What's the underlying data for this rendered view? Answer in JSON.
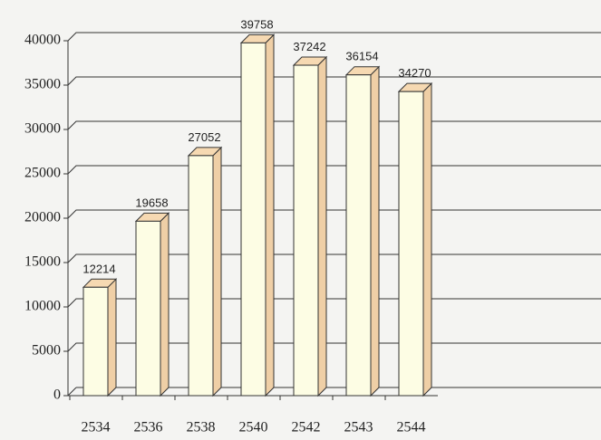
{
  "chart_data": {
    "type": "bar",
    "categories": [
      "2534",
      "2536",
      "2538",
      "2540",
      "2542",
      "2543",
      "2544"
    ],
    "values": [
      12214,
      19658,
      27052,
      39758,
      37242,
      36154,
      34270
    ],
    "color": "#fdfde4",
    "top_color": "#f6d9b2",
    "side_color": "#efcfa6",
    "ylim": [
      0,
      40000
    ],
    "yticks": [
      0,
      5000,
      10000,
      15000,
      20000,
      25000,
      30000,
      35000,
      40000
    ],
    "grid": true
  }
}
